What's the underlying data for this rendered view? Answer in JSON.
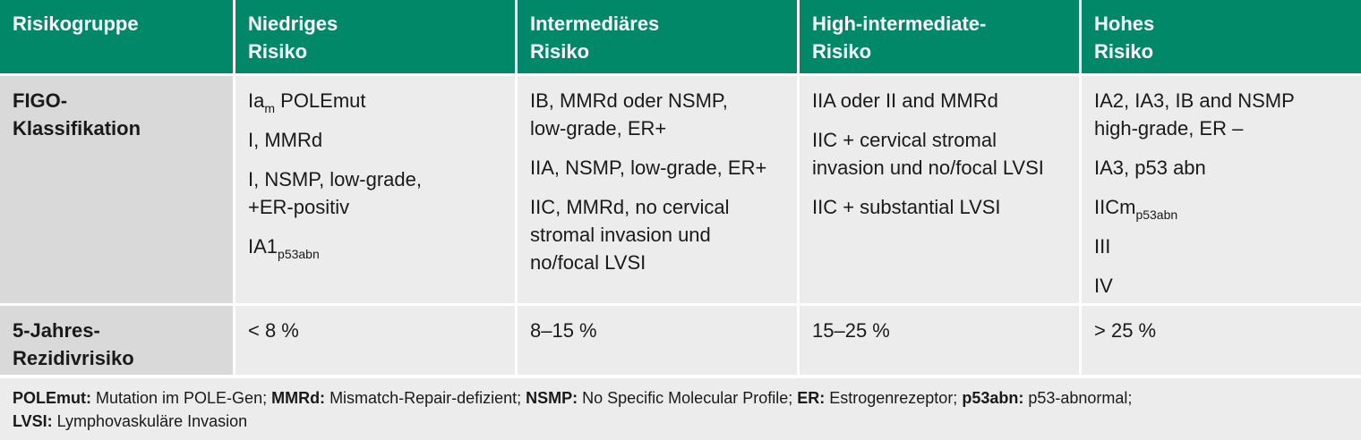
{
  "header": {
    "col0": "Risikogruppe",
    "col1": [
      "Niedriges",
      "Risiko"
    ],
    "col2": [
      "Intermediäres",
      "Risiko"
    ],
    "col3": [
      "High-intermediate-",
      "Risiko"
    ],
    "col4": [
      "Hohes",
      "Risiko"
    ]
  },
  "rows": {
    "figo": {
      "label": [
        "FIGO-",
        "Klassifikation"
      ],
      "low": {
        "e1_main": "Ia",
        "e1_sub": "m",
        "e1_tail": " POLEmut",
        "e2": "I, MMRd",
        "e3": [
          "I, NSMP, low-grade,",
          "+ER-positiv"
        ],
        "e4_main": "IA1",
        "e4_sub": "p53abn"
      },
      "intermediate": {
        "e1": [
          "IB, MMRd oder NSMP,",
          "low-grade, ER+"
        ],
        "e2": "IIA, NSMP, low-grade, ER+",
        "e3": [
          "IIC, MMRd, no cervical",
          "stromal invasion und",
          "no/focal LVSI"
        ]
      },
      "high_intermediate": {
        "e1": "IIA oder II and MMRd",
        "e2": [
          "IIC + cervical stromal",
          "invasion und no/focal LVSI"
        ],
        "e3": "IIC + substantial LVSI"
      },
      "high": {
        "e1": [
          "IA2, IA3, IB and NSMP",
          "high-grade, ER –"
        ],
        "e2": "IA3, p53 abn",
        "e3_main": "IICm",
        "e3_sub": "p53abn",
        "e4": "III",
        "e5": "IV"
      }
    },
    "recurrence": {
      "label": [
        "5-Jahres-",
        "Rezidivrisiko"
      ],
      "low": "< 8 %",
      "intermediate": "8–15 %",
      "high_intermediate": "15–25 %",
      "high": "> 25 %"
    }
  },
  "footnote": {
    "t1": "POLEmut:",
    "d1": " Mutation im POLE-Gen; ",
    "t2": "MMRd:",
    "d2": " Mismatch-Repair-defizient; ",
    "t3": "NSMP:",
    "d3": " No Specific Molecular Profile; ",
    "t4": "ER:",
    "d4": " Estrogenrezeptor; ",
    "t5": "p53abn:",
    "d5": " p53-abnormal;",
    "t6": "LVSI:",
    "d6": " Lymphovaskuläre Invasion"
  },
  "colors": {
    "header_bg": "#008868",
    "label_bg": "#d9d9d9",
    "body_bg": "#ececec"
  }
}
